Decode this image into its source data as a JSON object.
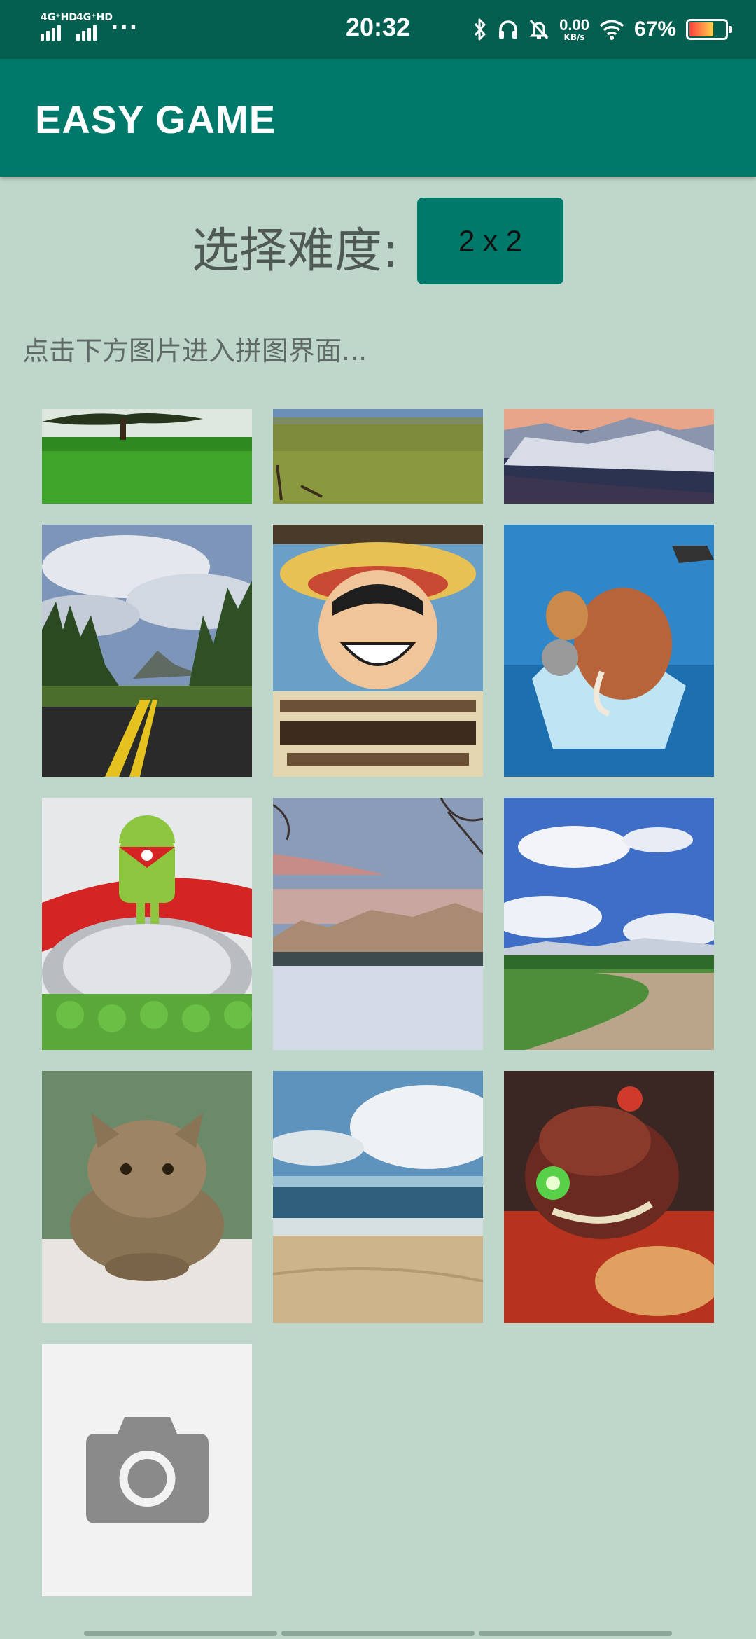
{
  "status_bar": {
    "signal_1_label": "4G⁺HD",
    "signal_2_label": "4G⁺HD",
    "more": "···",
    "time": "20:32",
    "net_speed_value": "0.00",
    "net_speed_unit": "KB/s",
    "battery_percent": "67%",
    "battery_level": 0.67,
    "icons": [
      "bluetooth-icon",
      "headphones-icon",
      "mute-bell-icon",
      "wifi-icon",
      "battery-icon"
    ]
  },
  "app_bar": {
    "title": "EASY GAME"
  },
  "difficulty": {
    "label": "选择难度:",
    "value": "2 x 2"
  },
  "hint": "点击下方图片进入拼图界面...",
  "gallery": {
    "items": [
      {
        "name": "tree-meadow"
      },
      {
        "name": "grass-field"
      },
      {
        "name": "snowy-mountain"
      },
      {
        "name": "forest-road"
      },
      {
        "name": "luffy-wanted-poster"
      },
      {
        "name": "ice-age-mammoth"
      },
      {
        "name": "android-robot-globe"
      },
      {
        "name": "winter-lake"
      },
      {
        "name": "country-road"
      },
      {
        "name": "kitten"
      },
      {
        "name": "beach-shore"
      },
      {
        "name": "game-character"
      }
    ],
    "camera_icon": "camera-icon"
  },
  "colors": {
    "status_bar": "#055f50",
    "app_bar": "#00796b",
    "background": "#bfd7cb",
    "button": "#00796b"
  }
}
